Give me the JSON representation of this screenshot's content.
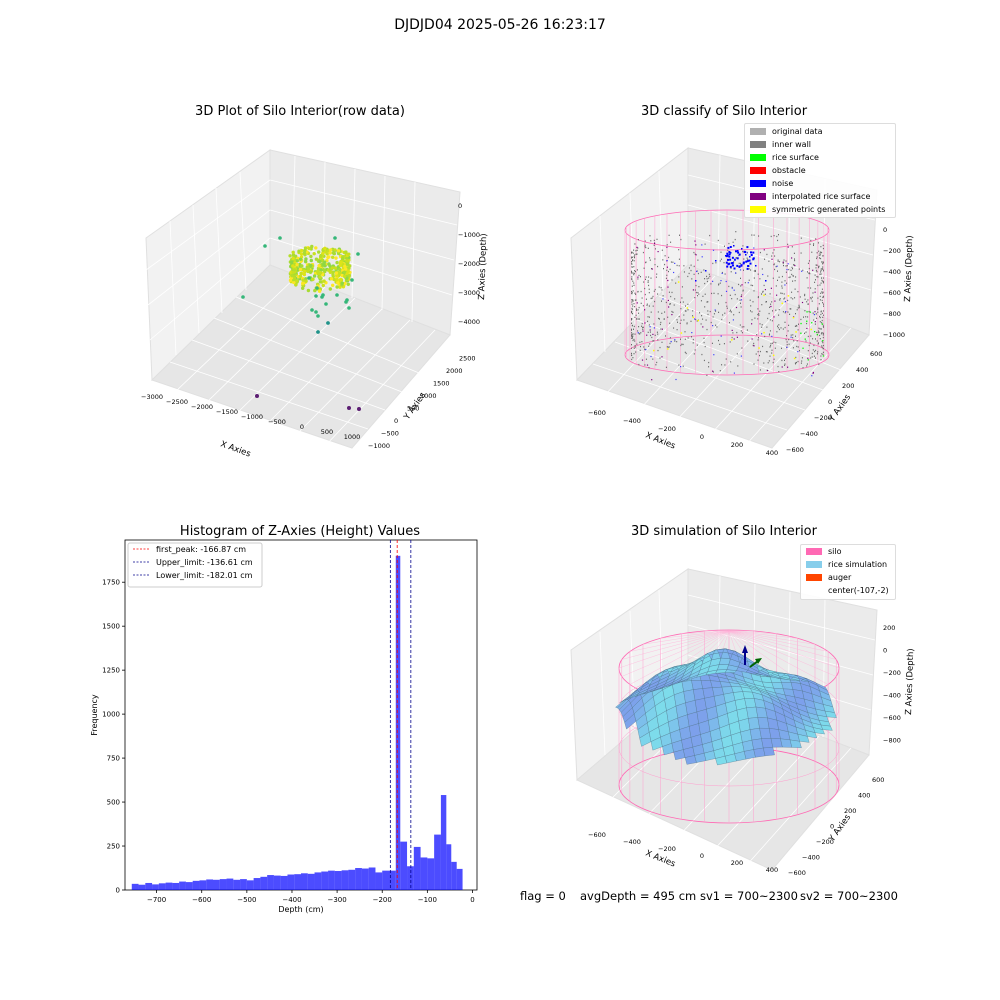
{
  "suptitle": "DJDJD04 2025-05-26 16:23:17",
  "footer": {
    "flag": "flag = 0",
    "avg_depth": "avgDepth = 495 cm",
    "sv1": "sv1 = 700~2300",
    "sv2": "sv2 = 700~2300"
  },
  "chart_data": [
    {
      "type": "scatter",
      "projection": "3d",
      "title": "3D Plot of Silo Interior(row data)",
      "xlabel": "X Axies",
      "ylabel": "Y Axies",
      "zlabel": "Z Axies (Depth)",
      "xticks": [
        "−3000",
        "−2500",
        "−2000",
        "−1500",
        "−1000",
        "−500",
        "0",
        "500",
        "1000"
      ],
      "yticks": [
        "−1000",
        "−500",
        "0",
        "500",
        "1000",
        "1500",
        "2000",
        "2500"
      ],
      "zticks": [
        "0",
        "−1000",
        "−2000",
        "−3000",
        "−4000"
      ],
      "colormap": "viridis",
      "description_points": "dense ring of points near z ≈ -2000 (yellow-green), scattered points down to z ≈ -4000, three outliers at bottom (purple)"
    },
    {
      "type": "scatter",
      "projection": "3d",
      "title": "3D classify of Silo Interior",
      "xlabel": "X Axies",
      "ylabel": "Y Axies",
      "zlabel": "Z Axies (Depth)",
      "xticks": [
        "−600",
        "−400",
        "−200",
        "0",
        "200",
        "400"
      ],
      "yticks": [
        "−600",
        "−400",
        "−200",
        "0",
        "200",
        "400",
        "600"
      ],
      "zticks": [
        "0",
        "−200",
        "−400",
        "−600",
        "−800",
        "−1000"
      ],
      "legend": [
        {
          "label": "original data",
          "color": "#b0b0b0"
        },
        {
          "label": "inner wall",
          "color": "#808080"
        },
        {
          "label": "rice surface",
          "color": "#00ff00"
        },
        {
          "label": "obstacle",
          "color": "#ff0000"
        },
        {
          "label": "noise",
          "color": "#0000ff"
        },
        {
          "label": "interpolated rice surface",
          "color": "#800080"
        },
        {
          "label": "symmetric generated points",
          "color": "#ffff00"
        }
      ]
    },
    {
      "type": "bar",
      "title": "Histogram of Z-Axies (Height) Values",
      "xlabel": "Depth (cm)",
      "ylabel": "Frequency",
      "xlim": [
        -770,
        10
      ],
      "ylim": [
        0,
        1990
      ],
      "xticks": [
        -700,
        -600,
        -500,
        -400,
        -300,
        -200,
        -100,
        0
      ],
      "yticks": [
        0,
        250,
        500,
        750,
        1000,
        1250,
        1500,
        1750
      ],
      "bar_color": "#0000ff",
      "bins": [
        [
          -755,
          -740,
          35
        ],
        [
          -740,
          -725,
          30
        ],
        [
          -725,
          -710,
          40
        ],
        [
          -710,
          -695,
          32
        ],
        [
          -695,
          -680,
          38
        ],
        [
          -680,
          -665,
          42
        ],
        [
          -665,
          -650,
          40
        ],
        [
          -650,
          -635,
          48
        ],
        [
          -635,
          -620,
          45
        ],
        [
          -620,
          -605,
          52
        ],
        [
          -605,
          -590,
          55
        ],
        [
          -590,
          -575,
          60
        ],
        [
          -575,
          -560,
          58
        ],
        [
          -560,
          -545,
          62
        ],
        [
          -545,
          -530,
          65
        ],
        [
          -530,
          -515,
          58
        ],
        [
          -515,
          -500,
          62
        ],
        [
          -500,
          -485,
          55
        ],
        [
          -485,
          -470,
          68
        ],
        [
          -470,
          -455,
          75
        ],
        [
          -455,
          -440,
          85
        ],
        [
          -440,
          -425,
          82
        ],
        [
          -425,
          -410,
          80
        ],
        [
          -410,
          -395,
          88
        ],
        [
          -395,
          -380,
          90
        ],
        [
          -380,
          -365,
          95
        ],
        [
          -365,
          -350,
          92
        ],
        [
          -350,
          -335,
          100
        ],
        [
          -335,
          -320,
          105
        ],
        [
          -320,
          -305,
          110
        ],
        [
          -305,
          -290,
          108
        ],
        [
          -290,
          -275,
          112
        ],
        [
          -275,
          -260,
          115
        ],
        [
          -260,
          -245,
          125
        ],
        [
          -245,
          -230,
          122
        ],
        [
          -230,
          -215,
          128
        ],
        [
          -215,
          -200,
          100
        ],
        [
          -200,
          -185,
          110
        ],
        [
          -185,
          -170,
          110
        ],
        [
          -170,
          -160,
          1900
        ],
        [
          -160,
          -145,
          275
        ],
        [
          -145,
          -130,
          135
        ],
        [
          -130,
          -115,
          245
        ],
        [
          -115,
          -100,
          185
        ],
        [
          -100,
          -85,
          180
        ],
        [
          -85,
          -70,
          315
        ],
        [
          -70,
          -58,
          540
        ],
        [
          -58,
          -47,
          260
        ],
        [
          -47,
          -35,
          160
        ],
        [
          -35,
          -22,
          120
        ]
      ],
      "vlines": [
        {
          "label": "first_peak: -166.87 cm",
          "x": -166.87,
          "color": "#ff0000"
        },
        {
          "label": "Upper_limit: -136.61 cm",
          "x": -136.61,
          "color": "#00008b"
        },
        {
          "label": "Lower_limit: -182.01 cm",
          "x": -182.01,
          "color": "#00008b"
        }
      ]
    },
    {
      "type": "surface",
      "projection": "3d",
      "title": "3D simulation of Silo Interior",
      "xlabel": "X Axies",
      "ylabel": "Y Axies",
      "zlabel": "Z Axies (Depth)",
      "xticks": [
        "−600",
        "−400",
        "−200",
        "0",
        "200",
        "400"
      ],
      "yticks": [
        "−600",
        "−400",
        "−200",
        "0",
        "200",
        "400",
        "600"
      ],
      "zticks": [
        "200",
        "0",
        "−200",
        "−400",
        "−600",
        "−800"
      ],
      "legend": [
        {
          "label": "silo",
          "color": "#ff69b4"
        },
        {
          "label": "rice simulation",
          "color": "#87ceeb"
        },
        {
          "label": "auger",
          "color": "#ff4500"
        },
        {
          "label": "center(-107,-2)",
          "color": ""
        }
      ]
    }
  ]
}
